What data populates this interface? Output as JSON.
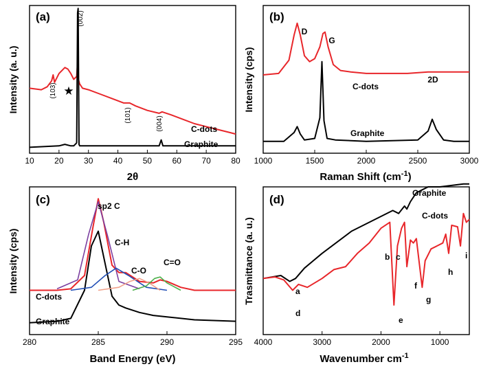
{
  "colors": {
    "red": "#e8262a",
    "black": "#000000",
    "purple": "#7b3fa0",
    "blue": "#1f4db5",
    "green": "#4bb04a",
    "peach": "#f0a08a"
  },
  "chart_data": [
    {
      "type": "line",
      "panel": "(a)",
      "xlabel": "2θ",
      "ylabel": "Intensity (a. u.)",
      "xlim": [
        10,
        80
      ],
      "xticks": [
        "10",
        "20",
        "30",
        "40",
        "50",
        "60",
        "70",
        "80"
      ],
      "series": [
        {
          "name": "C-dots",
          "color": "#e8262a",
          "x": [
            10,
            14,
            16,
            17.5,
            18,
            18.5,
            20,
            22,
            23,
            24,
            25,
            26,
            26.3,
            26.6,
            27,
            28,
            30,
            34,
            38,
            42,
            44,
            46,
            50,
            54,
            55,
            58,
            62,
            66,
            70,
            74,
            78,
            80
          ],
          "y": [
            0.44,
            0.43,
            0.45,
            0.49,
            0.53,
            0.48,
            0.54,
            0.58,
            0.57,
            0.54,
            0.5,
            0.52,
            0.61,
            0.5,
            0.47,
            0.44,
            0.43,
            0.4,
            0.37,
            0.34,
            0.34,
            0.32,
            0.29,
            0.27,
            0.28,
            0.26,
            0.23,
            0.2,
            0.18,
            0.16,
            0.14,
            0.13
          ]
        },
        {
          "name": "Graphite",
          "color": "#000000",
          "x": [
            10,
            20,
            22,
            24,
            25,
            26,
            26.3,
            26.5,
            26.8,
            27,
            28,
            30,
            40,
            44,
            50,
            54,
            54.7,
            55.3,
            56,
            60,
            70,
            80
          ],
          "y": [
            0.04,
            0.05,
            0.06,
            0.05,
            0.05,
            0.07,
            0.95,
            0.98,
            0.06,
            0.05,
            0.05,
            0.05,
            0.05,
            0.05,
            0.05,
            0.05,
            0.09,
            0.05,
            0.05,
            0.05,
            0.05,
            0.05
          ]
        }
      ],
      "annotations": [
        "(002)",
        "(103)",
        "★",
        "(101)",
        "(004)"
      ],
      "series_labels": [
        "C-dots",
        "Graphite"
      ]
    },
    {
      "type": "line",
      "panel": "(b)",
      "xlabel": "Raman Shift (cm",
      "xlabel_sup": "-1",
      "xlabel_close": ")",
      "ylabel": "Intensity (cps)",
      "xlim": [
        1000,
        3000
      ],
      "xticks": [
        "1000",
        "1500",
        "2000",
        "2500",
        "3000"
      ],
      "series": [
        {
          "name": "C-dots",
          "color": "#e8262a",
          "x": [
            1000,
            1150,
            1250,
            1300,
            1330,
            1360,
            1400,
            1450,
            1500,
            1550,
            1580,
            1600,
            1630,
            1680,
            1750,
            1850,
            2000,
            2200,
            2400,
            2600,
            2700,
            2800,
            3000
          ],
          "y": [
            0.53,
            0.54,
            0.63,
            0.8,
            0.88,
            0.8,
            0.66,
            0.62,
            0.64,
            0.72,
            0.81,
            0.82,
            0.72,
            0.6,
            0.56,
            0.55,
            0.54,
            0.54,
            0.54,
            0.55,
            0.55,
            0.55,
            0.55
          ]
        },
        {
          "name": "Graphite",
          "color": "#000000",
          "x": [
            1000,
            1200,
            1300,
            1330,
            1360,
            1400,
            1500,
            1550,
            1570,
            1590,
            1620,
            1700,
            2000,
            2500,
            2600,
            2640,
            2680,
            2750,
            2850,
            3000
          ],
          "y": [
            0.08,
            0.08,
            0.14,
            0.18,
            0.13,
            0.09,
            0.1,
            0.24,
            0.62,
            0.22,
            0.1,
            0.09,
            0.08,
            0.09,
            0.15,
            0.23,
            0.16,
            0.09,
            0.08,
            0.08
          ]
        }
      ],
      "peak_labels": [
        "D",
        "G",
        "2D"
      ],
      "series_labels": [
        "C-dots",
        "Graphite"
      ]
    },
    {
      "type": "line",
      "panel": "(c)",
      "xlabel": "Band Energy (eV)",
      "ylabel": "Intensity (cps)",
      "xlim": [
        280,
        295
      ],
      "xticks": [
        "280",
        "285",
        "290",
        "295"
      ],
      "series": [
        {
          "name": "C-dots envelope",
          "color": "#e8262a",
          "x": [
            280,
            282,
            283,
            284,
            284.6,
            285,
            285.4,
            286,
            286.5,
            287,
            288,
            289,
            289.5,
            290,
            291,
            292,
            295
          ],
          "y": [
            0.3,
            0.3,
            0.31,
            0.4,
            0.72,
            0.92,
            0.76,
            0.47,
            0.42,
            0.42,
            0.36,
            0.35,
            0.37,
            0.36,
            0.32,
            0.3,
            0.3
          ]
        },
        {
          "name": "Graphite",
          "color": "#000000",
          "x": [
            280,
            282,
            283,
            284,
            284.5,
            285,
            285.5,
            286,
            286.5,
            287,
            288,
            289,
            290,
            292,
            295
          ],
          "y": [
            0.08,
            0.09,
            0.11,
            0.3,
            0.6,
            0.7,
            0.48,
            0.26,
            0.2,
            0.18,
            0.15,
            0.13,
            0.12,
            0.1,
            0.09
          ]
        },
        {
          "name": "sp2 C",
          "color": "#7b3fa0",
          "x": [
            282,
            283.5,
            284.3,
            285,
            285.7,
            286.5,
            288
          ],
          "y": [
            0.31,
            0.37,
            0.68,
            0.9,
            0.66,
            0.36,
            0.31
          ]
        },
        {
          "name": "C-H",
          "color": "#1f4db5",
          "x": [
            283,
            284.5,
            285.5,
            286.3,
            287.2,
            288.5,
            290
          ],
          "y": [
            0.3,
            0.32,
            0.4,
            0.45,
            0.4,
            0.32,
            0.3
          ]
        },
        {
          "name": "C-O",
          "color": "#f0a08a",
          "x": [
            285,
            286.5,
            287.3,
            288,
            288.7,
            289.5
          ],
          "y": [
            0.3,
            0.32,
            0.36,
            0.38,
            0.35,
            0.3
          ]
        },
        {
          "name": "C=O",
          "color": "#4bb04a",
          "x": [
            287.5,
            288.5,
            289.1,
            289.5,
            290,
            291
          ],
          "y": [
            0.3,
            0.33,
            0.38,
            0.39,
            0.35,
            0.3
          ]
        }
      ],
      "peak_labels": [
        "sp2 C",
        "C-H",
        "C-O",
        "C=O"
      ],
      "series_labels": [
        "C-dots",
        "Graphite"
      ]
    },
    {
      "type": "line",
      "panel": "(d)",
      "xlabel": "Wavenumber cm",
      "xlabel_sup": "-1",
      "ylabel": "Trasmittance (a. u.)",
      "xlim": [
        4000,
        500
      ],
      "xticks": [
        "4000",
        "3000",
        "2000",
        "1000"
      ],
      "series": [
        {
          "name": "Graphite",
          "color": "#000000",
          "x": [
            4000,
            3700,
            3550,
            3450,
            3300,
            3000,
            2500,
            2000,
            1800,
            1700,
            1600,
            1560,
            1500,
            1400,
            1300,
            1200,
            1000,
            800,
            600,
            500
          ],
          "y": [
            0.38,
            0.4,
            0.36,
            0.38,
            0.45,
            0.55,
            0.7,
            0.8,
            0.84,
            0.82,
            0.87,
            0.85,
            0.9,
            0.96,
            0.98,
            1.0,
            1.0,
            1.01,
            1.02,
            1.02
          ]
        },
        {
          "name": "C-dots",
          "color": "#e8262a",
          "x": [
            4000,
            3800,
            3650,
            3500,
            3400,
            3250,
            3000,
            2800,
            2600,
            2400,
            2200,
            2000,
            1850,
            1780,
            1720,
            1650,
            1600,
            1560,
            1500,
            1450,
            1400,
            1300,
            1250,
            1150,
            1050,
            950,
            900,
            850,
            800,
            700,
            650,
            600,
            550,
            500
          ],
          "y": [
            0.38,
            0.39,
            0.37,
            0.3,
            0.34,
            0.32,
            0.38,
            0.44,
            0.46,
            0.55,
            0.62,
            0.72,
            0.76,
            0.2,
            0.6,
            0.72,
            0.76,
            0.46,
            0.64,
            0.62,
            0.65,
            0.32,
            0.5,
            0.58,
            0.6,
            0.62,
            0.68,
            0.55,
            0.74,
            0.73,
            0.6,
            0.82,
            0.76,
            0.78
          ]
        }
      ],
      "peak_labels": [
        "a",
        "b",
        "c",
        "d",
        "e",
        "f",
        "g",
        "h",
        "i"
      ],
      "series_labels": [
        "Graphite",
        "C-dots"
      ]
    }
  ]
}
